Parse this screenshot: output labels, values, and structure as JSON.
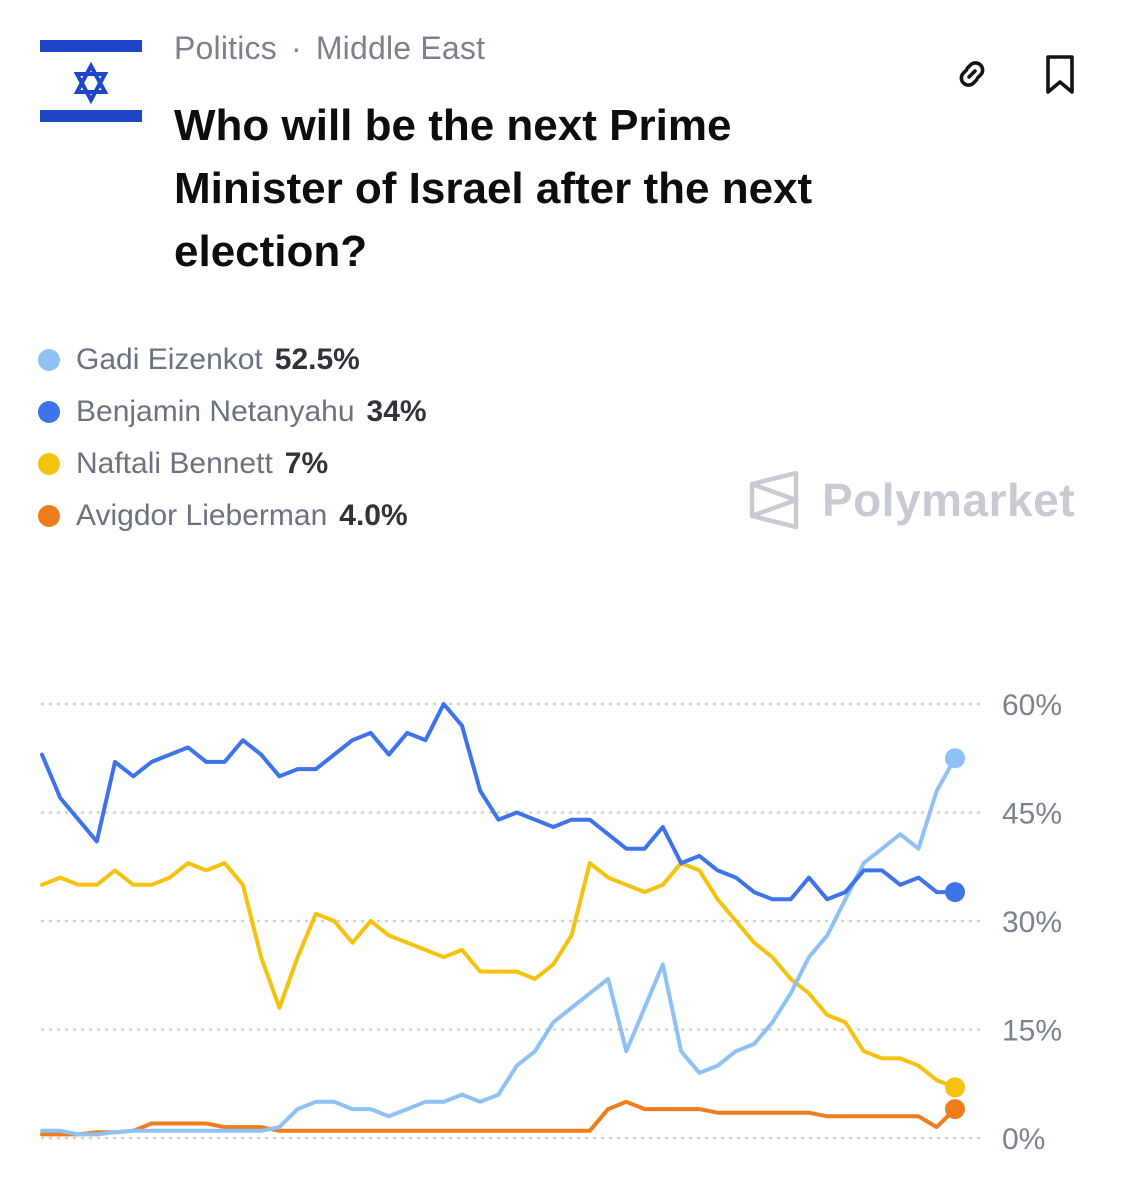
{
  "header": {
    "category": "Politics",
    "subcategory": "Middle East",
    "separator": "·",
    "title": "Who will be the next Prime Minister of Israel after the next election?"
  },
  "actions": {
    "link_icon": "link-icon",
    "bookmark_icon": "bookmark-icon"
  },
  "legend": [
    {
      "name": "Gadi Eizenkot",
      "value": "52.5%",
      "color": "#8fc1f5"
    },
    {
      "name": "Benjamin Netanyahu",
      "value": "34%",
      "color": "#3e73ea"
    },
    {
      "name": "Naftali Bennett",
      "value": "7%",
      "color": "#f5c20e"
    },
    {
      "name": "Avigdor Lieberman",
      "value": "4.0%",
      "color": "#f07d1c"
    }
  ],
  "brand": {
    "name": "Polymarket",
    "icon": "polymarket-logo-icon"
  },
  "chart_data": {
    "type": "line",
    "ylim": [
      0,
      60
    ],
    "yticks": [
      "60%",
      "45%",
      "30%",
      "15%",
      "0%"
    ],
    "ytick_values": [
      60,
      45,
      30,
      15,
      0
    ],
    "grid": true,
    "x": [
      0,
      2,
      4,
      6,
      8,
      10,
      12,
      14,
      16,
      18,
      20,
      22,
      24,
      26,
      28,
      30,
      32,
      34,
      36,
      38,
      40,
      42,
      44,
      46,
      48,
      50,
      52,
      54,
      56,
      58,
      60,
      62,
      64,
      66,
      68,
      70,
      72,
      74,
      76,
      78,
      80,
      82,
      84,
      86,
      88,
      90,
      92,
      94,
      96,
      98,
      100
    ],
    "series": [
      {
        "name": "Gadi Eizenkot",
        "color": "#8fc1f5",
        "values": [
          1,
          1,
          0.5,
          0.5,
          0.8,
          1,
          1,
          1,
          1,
          1,
          1,
          1,
          1,
          1.5,
          4,
          5,
          5,
          4,
          4,
          3,
          4,
          5,
          5,
          6,
          5,
          6,
          10,
          12,
          16,
          18,
          20,
          22,
          12,
          18,
          24,
          12,
          9,
          10,
          12,
          13,
          16,
          20,
          25,
          28,
          33,
          38,
          40,
          42,
          40,
          48,
          52.5
        ]
      },
      {
        "name": "Benjamin Netanyahu",
        "color": "#3e73ea",
        "values": [
          53,
          47,
          44,
          41,
          52,
          50,
          52,
          53,
          54,
          52,
          52,
          55,
          53,
          50,
          51,
          51,
          53,
          55,
          56,
          53,
          56,
          55,
          60,
          57,
          48,
          44,
          45,
          44,
          43,
          44,
          44,
          42,
          40,
          40,
          43,
          38,
          39,
          37,
          36,
          34,
          33,
          33,
          36,
          33,
          34,
          37,
          37,
          35,
          36,
          34,
          34
        ]
      },
      {
        "name": "Naftali Bennett",
        "color": "#f5c20e",
        "values": [
          35,
          36,
          35,
          35,
          37,
          35,
          35,
          36,
          38,
          37,
          38,
          35,
          25,
          18,
          25,
          31,
          30,
          27,
          30,
          28,
          27,
          26,
          25,
          26,
          23,
          23,
          23,
          22,
          24,
          28,
          38,
          36,
          35,
          34,
          35,
          38,
          37,
          33,
          30,
          27,
          25,
          22,
          20,
          17,
          16,
          12,
          11,
          11,
          10,
          8,
          7
        ]
      },
      {
        "name": "Avigdor Lieberman",
        "color": "#f07d1c",
        "values": [
          0.5,
          0.5,
          0.5,
          0.8,
          0.8,
          1,
          2,
          2,
          2,
          2,
          1.5,
          1.5,
          1.5,
          1,
          1,
          1,
          1,
          1,
          1,
          1,
          1,
          1,
          1,
          1,
          1,
          1,
          1,
          1,
          1,
          1,
          1,
          4,
          5,
          4,
          4,
          4,
          4,
          3.5,
          3.5,
          3.5,
          3.5,
          3.5,
          3.5,
          3,
          3,
          3,
          3,
          3,
          3,
          1.5,
          4.0
        ]
      }
    ]
  }
}
